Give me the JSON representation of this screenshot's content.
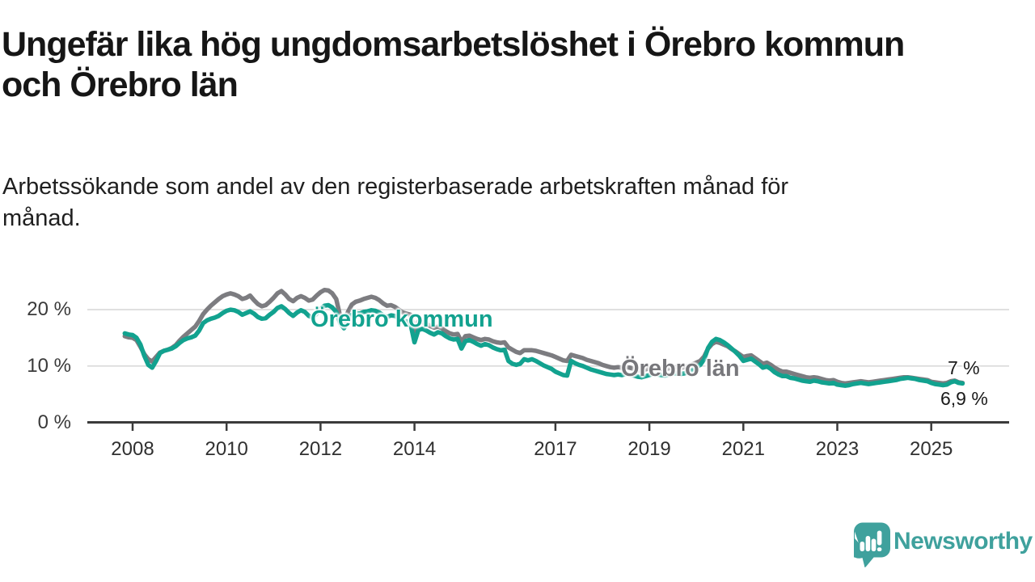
{
  "header": {
    "title_lines": [
      "Ungefär lika hög ungdomsarbetslöshet i Örebro kommun",
      "och Örebro län"
    ],
    "subtitle_lines": [
      "Arbetssökande som andel av den registerbaserade arbetskraften månad för",
      "månad."
    ]
  },
  "chart_data": {
    "type": "line",
    "unit": "%",
    "grid": "horizontal-only",
    "legend_position": "inline-labels-on-chart",
    "x_axis": {
      "start_year": 2007,
      "start_month": 11,
      "frequency": "monthly",
      "tick_years": [
        2008,
        2010,
        2012,
        2014,
        2017,
        2019,
        2021,
        2023,
        2025
      ]
    },
    "y_axis": {
      "ylim": [
        0,
        25
      ],
      "ticks": [
        {
          "value": 0,
          "label": "0 %"
        },
        {
          "value": 10,
          "label": "10 %"
        },
        {
          "value": 20,
          "label": "20 %"
        }
      ]
    },
    "series": [
      {
        "name": "Örebro kommun",
        "color": "#12a28f",
        "end_label": "6,9 %",
        "latest_value": 6.9,
        "values": [
          15.8,
          15.6,
          15.5,
          15.0,
          13.8,
          11.8,
          10.2,
          9.7,
          10.9,
          12.3,
          12.7,
          12.9,
          13.1,
          13.5,
          14.1,
          14.6,
          14.9,
          15.1,
          15.4,
          16.3,
          17.6,
          18.1,
          18.4,
          18.6,
          18.9,
          19.4,
          19.8,
          20.0,
          19.9,
          19.6,
          19.1,
          19.4,
          19.7,
          19.3,
          18.7,
          18.4,
          18.5,
          19.1,
          19.6,
          20.3,
          20.6,
          20.1,
          19.4,
          18.9,
          19.5,
          19.9,
          19.6,
          18.9,
          18.6,
          19.3,
          20.1,
          20.7,
          20.8,
          20.4,
          19.6,
          17.6,
          16.7,
          18.1,
          19.1,
          19.4,
          19.3,
          19.6,
          19.7,
          19.9,
          19.8,
          19.5,
          19.0,
          18.7,
          19.0,
          18.9,
          18.5,
          18.1,
          17.9,
          17.4,
          14.2,
          16.4,
          16.6,
          16.3,
          15.9,
          15.6,
          16.0,
          15.8,
          15.3,
          14.9,
          14.7,
          14.8,
          13.1,
          14.4,
          14.6,
          14.3,
          13.9,
          13.6,
          13.9,
          13.7,
          13.3,
          13.0,
          12.8,
          12.9,
          10.9,
          10.4,
          10.2,
          10.4,
          11.2,
          11.0,
          11.2,
          10.9,
          10.5,
          10.1,
          9.8,
          9.5,
          9.0,
          8.7,
          8.4,
          8.3,
          10.9,
          10.5,
          10.2,
          10.0,
          9.7,
          9.4,
          9.2,
          9.0,
          8.8,
          8.6,
          8.5,
          8.4,
          8.5,
          8.4,
          8.6,
          8.5,
          8.3,
          8.1,
          8.0,
          8.2,
          8.4,
          8.6,
          8.5,
          8.4,
          8.3,
          8.5,
          8.7,
          8.7,
          8.6,
          8.7,
          8.9,
          9.3,
          9.8,
          10.2,
          11.2,
          13.2,
          14.3,
          14.8,
          14.6,
          14.2,
          13.7,
          13.1,
          12.5,
          11.8,
          10.9,
          11.1,
          11.3,
          10.8,
          10.3,
          9.7,
          9.9,
          9.5,
          8.9,
          8.5,
          8.2,
          8.2,
          7.9,
          7.8,
          7.6,
          7.4,
          7.3,
          7.2,
          7.4,
          7.3,
          7.1,
          7.0,
          6.9,
          7.0,
          6.7,
          6.6,
          6.5,
          6.6,
          6.8,
          6.9,
          7.0,
          6.9,
          6.8,
          6.9,
          7.0,
          7.1,
          7.2,
          7.3,
          7.4,
          7.5,
          7.7,
          7.8,
          7.9,
          7.8,
          7.7,
          7.5,
          7.4,
          7.3,
          7.0,
          6.8,
          6.7,
          6.6,
          6.7,
          7.1,
          7.3,
          7.0,
          6.9
        ]
      },
      {
        "name": "Örebro län",
        "color": "#7c7c80",
        "end_label": "7 %",
        "latest_value": 7.0,
        "values": [
          15.3,
          15.1,
          15.0,
          14.6,
          13.4,
          12.1,
          11.2,
          10.8,
          11.6,
          12.4,
          12.7,
          12.9,
          13.2,
          13.7,
          14.5,
          15.2,
          15.8,
          16.4,
          17.0,
          18.0,
          19.2,
          20.0,
          20.7,
          21.3,
          21.9,
          22.4,
          22.7,
          22.9,
          22.7,
          22.4,
          21.9,
          22.1,
          22.5,
          21.7,
          21.0,
          20.6,
          20.8,
          21.4,
          22.1,
          22.9,
          23.3,
          22.7,
          21.9,
          21.5,
          22.1,
          22.4,
          22.1,
          21.6,
          21.8,
          22.5,
          23.1,
          23.5,
          23.4,
          22.9,
          21.9,
          18.9,
          17.8,
          19.6,
          20.9,
          21.4,
          21.6,
          21.9,
          22.1,
          22.3,
          22.1,
          21.7,
          21.1,
          20.7,
          20.8,
          20.5,
          20.0,
          19.5,
          19.3,
          19.1,
          16.2,
          17.9,
          17.8,
          17.5,
          17.1,
          16.8,
          17.0,
          16.7,
          16.2,
          15.8,
          15.6,
          15.7,
          14.3,
          15.3,
          15.4,
          15.1,
          14.8,
          14.6,
          14.8,
          14.7,
          14.4,
          14.2,
          14.1,
          14.2,
          13.3,
          12.9,
          12.5,
          12.3,
          12.8,
          12.8,
          12.8,
          12.7,
          12.5,
          12.3,
          12.1,
          11.9,
          11.6,
          11.3,
          11.0,
          10.9,
          12.0,
          11.8,
          11.6,
          11.4,
          11.1,
          10.9,
          10.7,
          10.5,
          10.2,
          10.0,
          9.8,
          9.7,
          9.8,
          9.7,
          9.8,
          9.7,
          9.5,
          9.3,
          9.2,
          9.4,
          9.6,
          9.7,
          9.6,
          9.5,
          9.4,
          9.6,
          9.8,
          9.8,
          9.7,
          9.8,
          10.0,
          10.3,
          10.6,
          10.9,
          11.7,
          13.1,
          13.9,
          14.3,
          14.1,
          13.8,
          13.5,
          13.0,
          12.6,
          12.1,
          11.6,
          11.8,
          11.9,
          11.4,
          10.9,
          10.4,
          10.6,
          10.2,
          9.7,
          9.3,
          9.0,
          9.0,
          8.8,
          8.6,
          8.4,
          8.2,
          8.0,
          7.9,
          8.0,
          7.9,
          7.7,
          7.5,
          7.4,
          7.5,
          7.2,
          7.0,
          6.9,
          7.0,
          7.1,
          7.2,
          7.3,
          7.2,
          7.1,
          7.2,
          7.3,
          7.4,
          7.5,
          7.6,
          7.7,
          7.8,
          7.9,
          8.0,
          8.0,
          7.9,
          7.8,
          7.7,
          7.6,
          7.5,
          7.2,
          7.1,
          7.0,
          6.9,
          7.0,
          7.3,
          7.4,
          7.1,
          7.0
        ]
      }
    ]
  },
  "branding": {
    "name": "Newsworthy",
    "color": "#3fa19d"
  },
  "colors": {
    "background": "#ffffff",
    "axis": "#3b3b3b",
    "gridline": "#d9d9d9",
    "kommun_teal": "#12a28f",
    "lan_gray": "#7c7c80"
  }
}
